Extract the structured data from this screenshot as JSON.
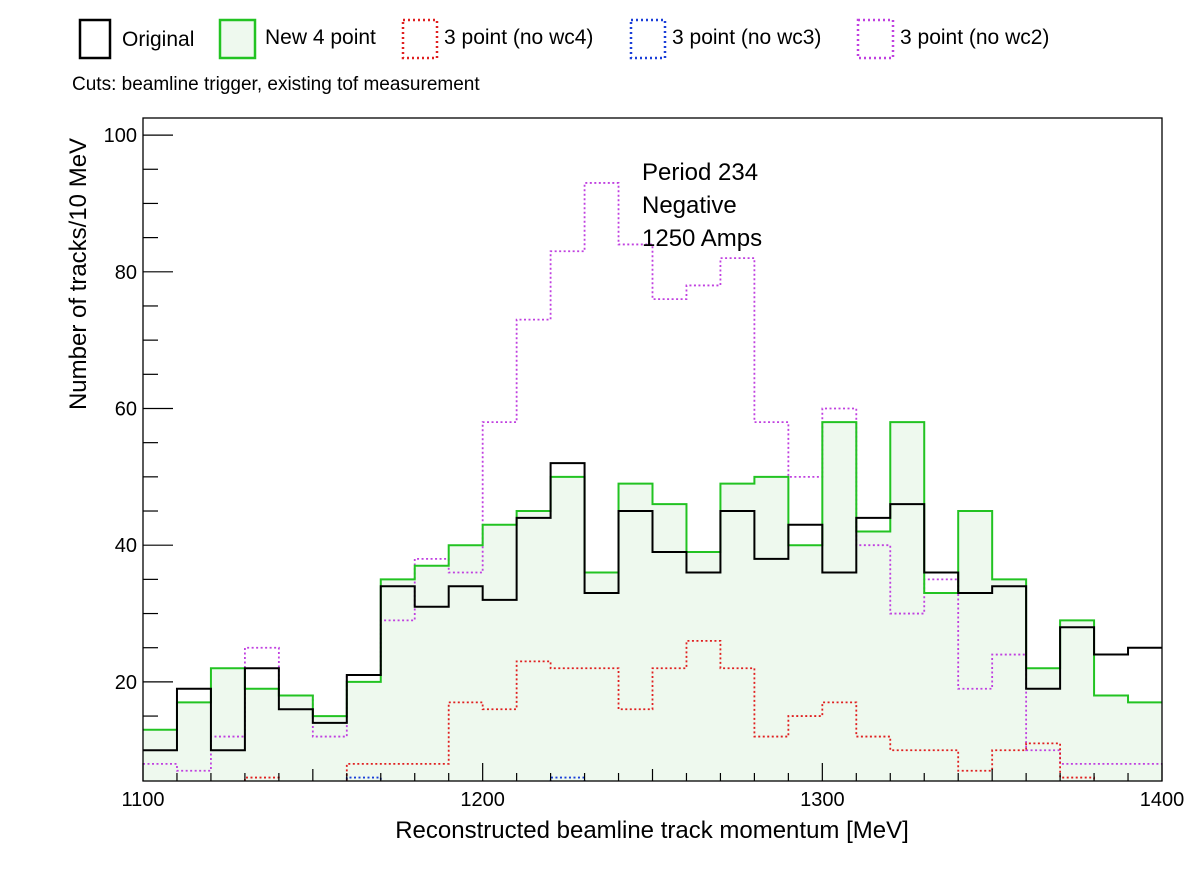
{
  "chart_data": {
    "type": "histogram",
    "title": "",
    "xlabel": "Reconstructed beamline track momentum [MeV]",
    "ylabel": "Number of tracks/10 MeV",
    "xlim": [
      1100,
      1400
    ],
    "ylim": [
      5.5,
      102.5
    ],
    "x_ticks": [
      1100,
      1200,
      1300,
      1400
    ],
    "y_ticks": [
      20,
      40,
      60,
      80,
      100
    ],
    "bin_width": 10,
    "bin_edges_start": 1100,
    "cuts_text": "Cuts: beamline trigger, existing tof measurement",
    "annotation": [
      "Period 234",
      "Negative",
      "1250 Amps"
    ],
    "grid": false,
    "legend_position": "top",
    "series": [
      {
        "name": "Original",
        "color": "#000000",
        "style": "solid",
        "fill": null,
        "values": [
          10,
          19,
          10,
          22,
          16,
          14,
          21,
          34,
          31,
          34,
          32,
          44,
          52,
          33,
          45,
          39,
          36,
          45,
          38,
          43,
          36,
          44,
          46,
          36,
          33,
          34,
          19,
          28,
          24,
          25
        ]
      },
      {
        "name": "New 4 point",
        "color": "#22c322",
        "style": "solid",
        "fill": "#eef9ee",
        "values": [
          13,
          17,
          22,
          19,
          18,
          15,
          20,
          35,
          37,
          40,
          43,
          45,
          50,
          36,
          49,
          46,
          39,
          49,
          50,
          40,
          58,
          42,
          58,
          33,
          45,
          35,
          22,
          29,
          18,
          17
        ]
      },
      {
        "name": "3 point (no wc4)",
        "color": "#e02020",
        "style": "dotted",
        "fill": null,
        "values": [
          0,
          0,
          0,
          6,
          0,
          0,
          8,
          8,
          8,
          17,
          16,
          23,
          22,
          22,
          16,
          22,
          26,
          22,
          12,
          15,
          17,
          12,
          10,
          10,
          7,
          10,
          11,
          6,
          0,
          0
        ]
      },
      {
        "name": "3 point (no wc3)",
        "color": "#1a3fd8",
        "style": "dotted",
        "fill": null,
        "values": [
          0,
          0,
          0,
          0,
          0,
          0,
          6,
          0,
          0,
          0,
          0,
          0,
          6,
          0,
          0,
          0,
          0,
          0,
          0,
          0,
          0,
          0,
          0,
          0,
          0,
          0,
          0,
          0,
          0,
          0
        ]
      },
      {
        "name": "3 point (no wc2)",
        "color": "#c040e0",
        "style": "dotted",
        "fill": null,
        "values": [
          8,
          7,
          12,
          25,
          18,
          12,
          21,
          29,
          38,
          36,
          58,
          73,
          83,
          93,
          84,
          76,
          78,
          82,
          58,
          50,
          60,
          40,
          30,
          35,
          19,
          24,
          10,
          8,
          8,
          8
        ]
      }
    ]
  }
}
